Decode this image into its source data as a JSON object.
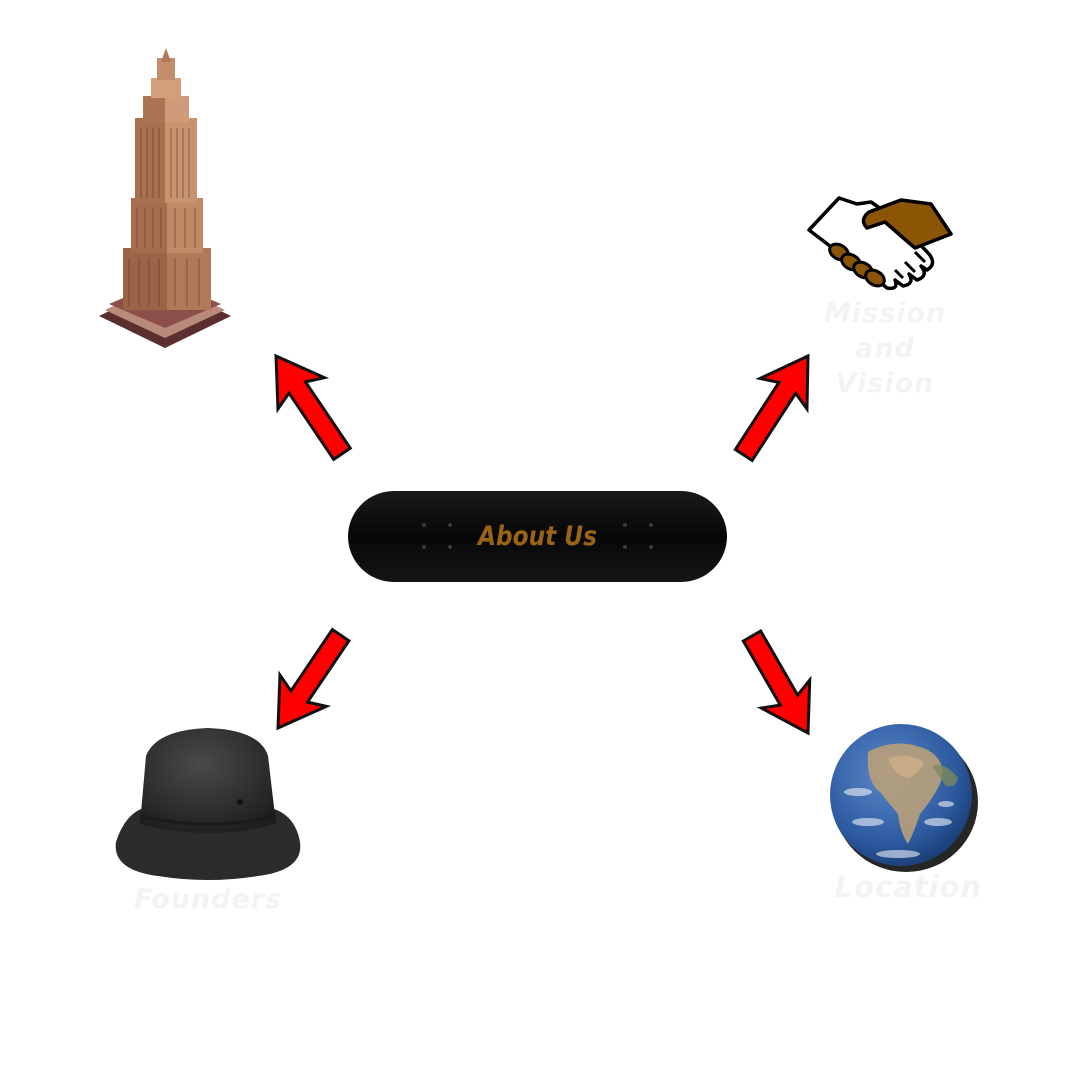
{
  "center": {
    "label": "About Us",
    "label_color": "#9a6416"
  },
  "nodes": {
    "history": {
      "icon": "skyscraper-icon"
    },
    "mission": {
      "label_lines": [
        "Mission",
        "and",
        "Vision"
      ],
      "icon": "handshake-icon"
    },
    "founders": {
      "label": "Founders",
      "icon": "bucket-hat-icon"
    },
    "location": {
      "label": "Location",
      "icon": "globe-icon"
    }
  },
  "colors": {
    "arrow_fill": "#ff0000",
    "arrow_stroke": "#111111",
    "label_text": "#f3f3f3",
    "board": "#0b0b0b"
  }
}
